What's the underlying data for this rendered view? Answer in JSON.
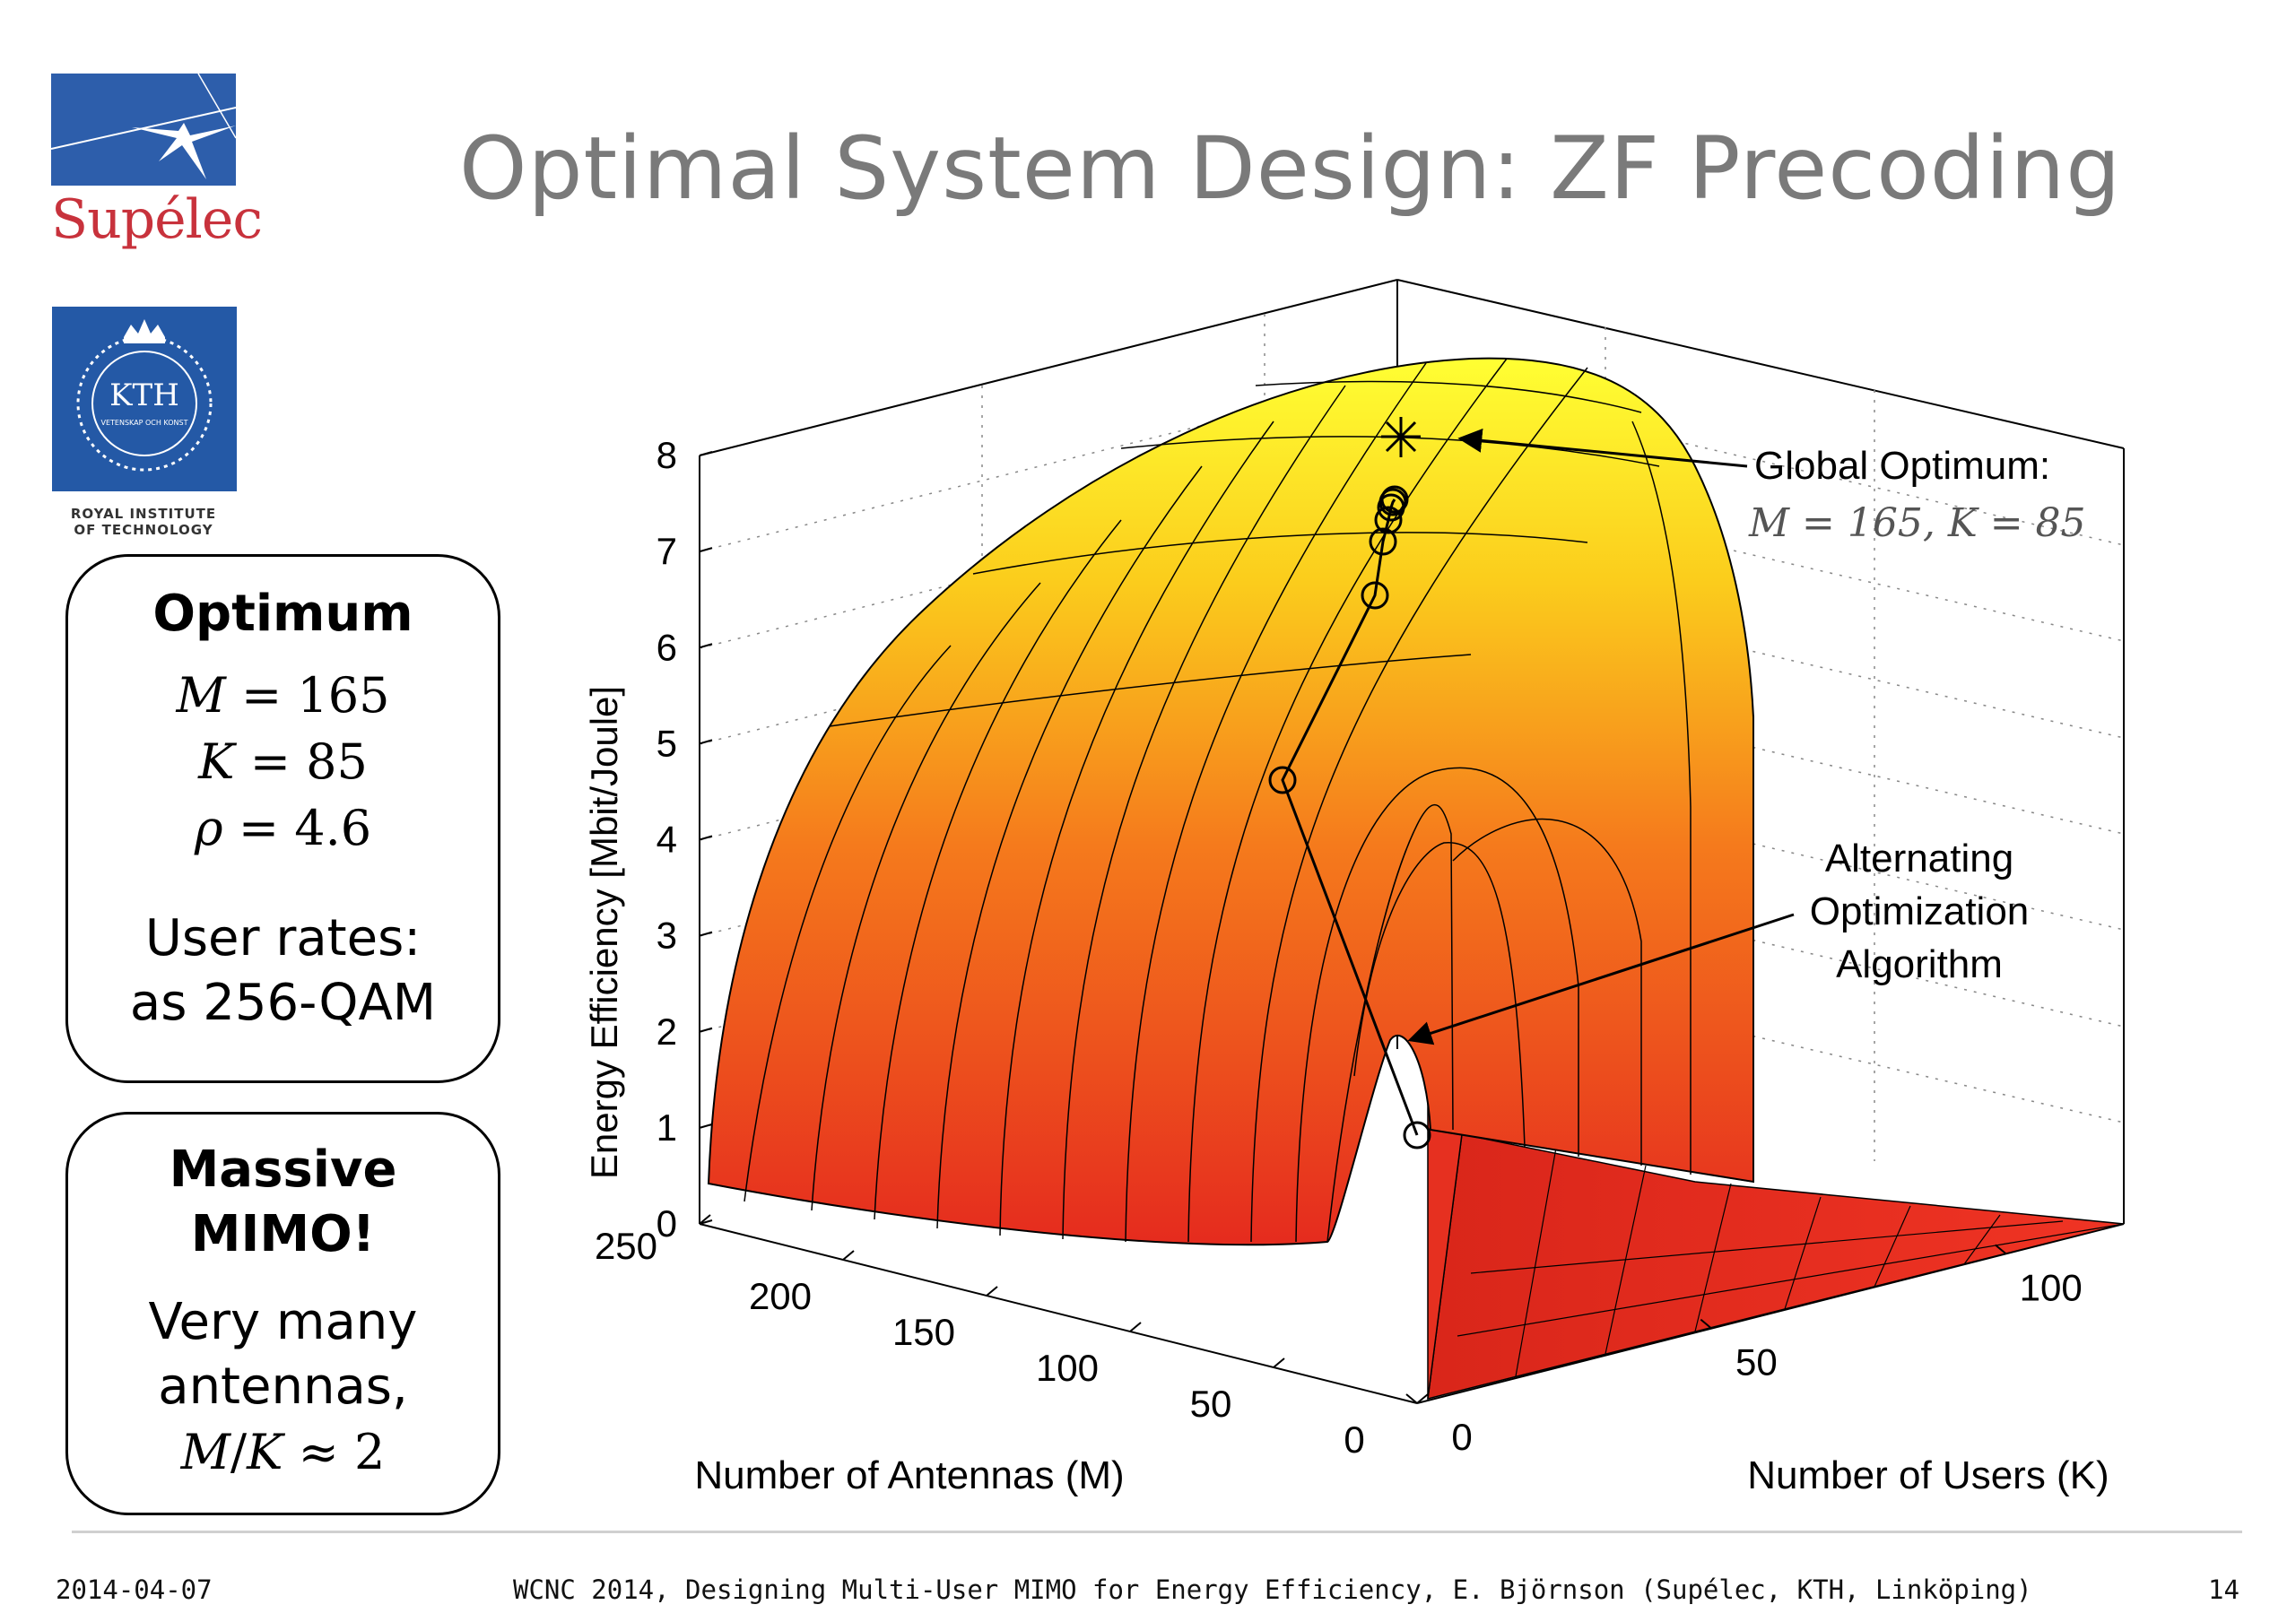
{
  "slide": {
    "title": "Optimal System Design: ZF Precoding",
    "logo_supelec": "Supélec",
    "logo_kth": "KTH",
    "logo_kth_ring": "VETENSKAP OCH KONST",
    "logo_kth_sub1": "ROYAL INSTITUTE",
    "logo_kth_sub2": "OF TECHNOLOGY",
    "footer_date": "2014-04-07",
    "footer_text": "WCNC 2014, Designing Multi-User MIMO for Energy Efficiency, E. Björnson (Supélec, KTH, Linköping)",
    "footer_page": "14"
  },
  "box_optimum": {
    "heading": "Optimum",
    "m_sym": "M",
    "m_val": "= 165",
    "k_sym": "K",
    "k_val": "= 85",
    "rho_sym": "ρ",
    "rho_val": "= 4.6",
    "rates_line1": "User rates:",
    "rates_line2": "as 256-QAM"
  },
  "box_massive": {
    "heading_line1": "Massive",
    "heading_line2": "MIMO!",
    "line1": "Very many",
    "line2": "antennas,",
    "ratio_m": "M",
    "ratio_sep": "/",
    "ratio_k": "K",
    "ratio_val": "≈ 2"
  },
  "colors": {
    "title": "#7a7a7a",
    "supelec_red": "#c8323c",
    "supelec_blue": "#2d5eab",
    "kth_blue": "#2459a6",
    "surface_high": "#ffff33",
    "surface_low": "#e52b1e"
  },
  "chart_data": {
    "type": "surface3d",
    "zlabel": "Energy Efficiency [Mbit/Joule]",
    "xlabel": "Number of Antennas (M)",
    "ylabel": "Number of Users (K)",
    "z_ticks": [
      "0",
      "1",
      "2",
      "3",
      "4",
      "5",
      "6",
      "7",
      "8"
    ],
    "m_ticks": [
      "250",
      "200",
      "150",
      "100",
      "50",
      "0"
    ],
    "k_ticks": [
      "0",
      "50",
      "100"
    ],
    "zlim": [
      0,
      8
    ],
    "mlim": [
      0,
      250
    ],
    "klim": [
      0,
      120
    ],
    "optimum": {
      "M": 165,
      "K": 85,
      "EE": 7.9
    },
    "optimum_label_line1": "Global Optimum:",
    "optimum_label_line2": "M = 165, K = 85",
    "algo_label_line1": "Alternating",
    "algo_label_line2": "Optimization",
    "algo_label_line3": "Algorithm",
    "algorithm_path": [
      {
        "EE": 0.9
      },
      {
        "EE": 4.6
      },
      {
        "EE": 6.5
      },
      {
        "EE": 7.1
      },
      {
        "EE": 7.35
      },
      {
        "EE": 7.45
      },
      {
        "EE": 7.5
      },
      {
        "EE": 7.52
      }
    ]
  }
}
